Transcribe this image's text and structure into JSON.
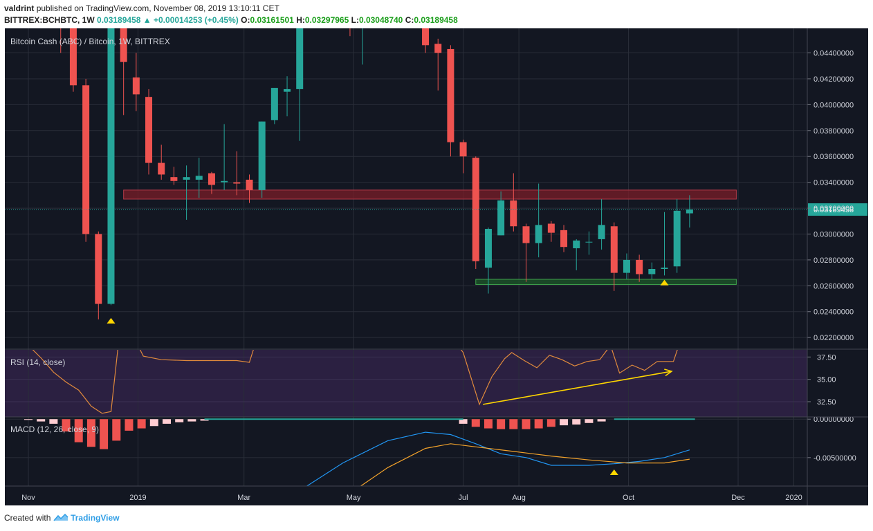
{
  "header": {
    "author": "valdrint",
    "published_text": "published on TradingView.com, November 08, 2019 13:10:11 CET",
    "symbol": "BITTREX:BCHBTC, 1W",
    "last": "0.03189458",
    "change_arrow": "▲",
    "change": "+0.00014253 (+0.45%)",
    "o_label": "O:",
    "o": "0.03161501",
    "h_label": "H:",
    "h": "0.03297965",
    "l_label": "L:",
    "l": "0.03048740",
    "c_label": "C:",
    "c": "0.03189458"
  },
  "footer": {
    "created_with": "Created with",
    "brand": "TradingView"
  },
  "colors": {
    "bg": "#131722",
    "up": "#26a69a",
    "down": "#ef5350",
    "grid": "#2a2e39",
    "rsi_line": "#e08a3c",
    "macd_line": "#2196f3",
    "signal_line": "#f4a32b",
    "hist_neg": "#ffcdd2",
    "hist_neg_strong": "#ef5350",
    "hist_pos": "#26a69a",
    "marker": "#ffd600",
    "resistance_zone": "#7b1d28",
    "support_zone": "#1e5a2a"
  },
  "chart_data": [
    {
      "type": "candlestick",
      "title": "Bitcoin Cash (ABC) / Bitcoin, 1W, BITTREX",
      "price_label": "0.03189458",
      "ylim": [
        0.0211,
        0.0459
      ],
      "y_ticks": [
        "0.02200000",
        "0.02400000",
        "0.02600000",
        "0.02800000",
        "0.03000000",
        "0.03200000",
        "0.03400000",
        "0.03600000",
        "0.03800000",
        "0.04000000",
        "0.04200000",
        "0.04400000"
      ],
      "x_ticks": [
        {
          "label": "Nov",
          "date": "2018-11-01"
        },
        {
          "label": "2019",
          "date": "2019-01-01"
        },
        {
          "label": "Mar",
          "date": "2019-03-01"
        },
        {
          "label": "May",
          "date": "2019-05-01"
        },
        {
          "label": "Jul",
          "date": "2019-07-01"
        },
        {
          "label": "Aug",
          "date": "2019-08-01"
        },
        {
          "label": "Oct",
          "date": "2019-10-01"
        },
        {
          "label": "Dec",
          "date": "2019-12-01"
        },
        {
          "label": "2020",
          "date": "2020-01-01"
        }
      ],
      "candles": [
        {
          "date": "2018-11-19",
          "o": 0.0475,
          "h": 0.0485,
          "l": 0.044,
          "c": 0.047
        },
        {
          "date": "2018-11-26",
          "o": 0.047,
          "h": 0.0475,
          "l": 0.041,
          "c": 0.0415
        },
        {
          "date": "2018-12-03",
          "o": 0.0415,
          "h": 0.042,
          "l": 0.0294,
          "c": 0.03
        },
        {
          "date": "2018-12-10",
          "o": 0.03,
          "h": 0.0302,
          "l": 0.0234,
          "c": 0.0246
        },
        {
          "date": "2018-12-17",
          "o": 0.0246,
          "h": 0.0475,
          "l": 0.0245,
          "c": 0.047
        },
        {
          "date": "2018-12-24",
          "o": 0.047,
          "h": 0.0475,
          "l": 0.0392,
          "c": 0.0433
        },
        {
          "date": "2018-12-31",
          "o": 0.0421,
          "h": 0.044,
          "l": 0.0395,
          "c": 0.0408
        },
        {
          "date": "2019-01-07",
          "o": 0.0406,
          "h": 0.0412,
          "l": 0.0346,
          "c": 0.0355
        },
        {
          "date": "2019-01-14",
          "o": 0.0355,
          "h": 0.0369,
          "l": 0.0342,
          "c": 0.0346
        },
        {
          "date": "2019-01-21",
          "o": 0.0344,
          "h": 0.0352,
          "l": 0.0338,
          "c": 0.0341
        },
        {
          "date": "2019-01-28",
          "o": 0.0342,
          "h": 0.0353,
          "l": 0.0311,
          "c": 0.0344
        },
        {
          "date": "2019-02-04",
          "o": 0.0342,
          "h": 0.0359,
          "l": 0.0328,
          "c": 0.0345
        },
        {
          "date": "2019-02-11",
          "o": 0.0347,
          "h": 0.0348,
          "l": 0.0331,
          "c": 0.0338
        },
        {
          "date": "2019-02-18",
          "o": 0.034,
          "h": 0.0385,
          "l": 0.0334,
          "c": 0.0341
        },
        {
          "date": "2019-02-25",
          "o": 0.034,
          "h": 0.0364,
          "l": 0.033,
          "c": 0.0339
        },
        {
          "date": "2019-03-04",
          "o": 0.0342,
          "h": 0.0346,
          "l": 0.0324,
          "c": 0.0334
        },
        {
          "date": "2019-03-11",
          "o": 0.0334,
          "h": 0.0387,
          "l": 0.0328,
          "c": 0.0387
        },
        {
          "date": "2019-03-18",
          "o": 0.0388,
          "h": 0.0413,
          "l": 0.0385,
          "c": 0.0413
        },
        {
          "date": "2019-03-25",
          "o": 0.041,
          "h": 0.0422,
          "l": 0.0391,
          "c": 0.0412
        },
        {
          "date": "2019-04-01",
          "o": 0.0412,
          "h": 0.0478,
          "l": 0.0372,
          "c": 0.047
        },
        {
          "date": "2019-04-29",
          "o": 0.047,
          "h": 0.0475,
          "l": 0.0453,
          "c": 0.0468
        },
        {
          "date": "2019-05-06",
          "o": 0.046,
          "h": 0.0475,
          "l": 0.0431,
          "c": 0.047
        },
        {
          "date": "2019-06-10",
          "o": 0.047,
          "h": 0.0475,
          "l": 0.044,
          "c": 0.0446
        },
        {
          "date": "2019-06-17",
          "o": 0.0447,
          "h": 0.0451,
          "l": 0.0411,
          "c": 0.044
        },
        {
          "date": "2019-06-24",
          "o": 0.0443,
          "h": 0.0446,
          "l": 0.036,
          "c": 0.0371
        },
        {
          "date": "2019-07-01",
          "o": 0.0371,
          "h": 0.0373,
          "l": 0.0347,
          "c": 0.036
        },
        {
          "date": "2019-07-08",
          "o": 0.0359,
          "h": 0.036,
          "l": 0.0273,
          "c": 0.0279
        },
        {
          "date": "2019-07-15",
          "o": 0.0274,
          "h": 0.0305,
          "l": 0.0254,
          "c": 0.0304
        },
        {
          "date": "2019-07-22",
          "o": 0.0299,
          "h": 0.0333,
          "l": 0.0299,
          "c": 0.0326
        },
        {
          "date": "2019-07-29",
          "o": 0.0326,
          "h": 0.0347,
          "l": 0.0302,
          "c": 0.0306
        },
        {
          "date": "2019-08-05",
          "o": 0.0306,
          "h": 0.0308,
          "l": 0.0263,
          "c": 0.0293
        },
        {
          "date": "2019-08-12",
          "o": 0.0293,
          "h": 0.0339,
          "l": 0.0282,
          "c": 0.0307
        },
        {
          "date": "2019-08-19",
          "o": 0.0308,
          "h": 0.031,
          "l": 0.0294,
          "c": 0.0301
        },
        {
          "date": "2019-08-26",
          "o": 0.0303,
          "h": 0.0307,
          "l": 0.0286,
          "c": 0.029
        },
        {
          "date": "2019-09-02",
          "o": 0.0289,
          "h": 0.0296,
          "l": 0.0272,
          "c": 0.0295
        },
        {
          "date": "2019-09-09",
          "o": 0.0294,
          "h": 0.0302,
          "l": 0.0284,
          "c": 0.0294
        },
        {
          "date": "2019-09-16",
          "o": 0.0296,
          "h": 0.0327,
          "l": 0.0288,
          "c": 0.0307
        },
        {
          "date": "2019-09-23",
          "o": 0.0306,
          "h": 0.0309,
          "l": 0.0256,
          "c": 0.027
        },
        {
          "date": "2019-09-30",
          "o": 0.027,
          "h": 0.0285,
          "l": 0.0265,
          "c": 0.028
        },
        {
          "date": "2019-10-07",
          "o": 0.028,
          "h": 0.0284,
          "l": 0.0263,
          "c": 0.0269
        },
        {
          "date": "2019-10-14",
          "o": 0.0269,
          "h": 0.0278,
          "l": 0.0265,
          "c": 0.0273
        },
        {
          "date": "2019-10-21",
          "o": 0.0273,
          "h": 0.0317,
          "l": 0.0268,
          "c": 0.0274
        },
        {
          "date": "2019-10-28",
          "o": 0.0275,
          "h": 0.0327,
          "l": 0.027,
          "c": 0.0318
        },
        {
          "date": "2019-11-04",
          "o": 0.0316,
          "h": 0.033,
          "l": 0.0305,
          "c": 0.0319
        }
      ],
      "zones": [
        {
          "kind": "resistance",
          "from": "2018-12-24",
          "to": "2019-11-30",
          "y1": 0.0327,
          "y2": 0.0334
        },
        {
          "kind": "support",
          "from": "2019-07-08",
          "to": "2019-11-30",
          "y1": 0.0261,
          "y2": 0.0265
        }
      ],
      "markers": [
        {
          "date": "2018-12-17",
          "price": 0.0233
        },
        {
          "date": "2019-10-21",
          "price": 0.02625
        }
      ]
    },
    {
      "type": "line",
      "title": "RSI (14, close)",
      "ylim": [
        30.8,
        38.3
      ],
      "y_ticks": [
        "37.50",
        "35.00",
        "32.50"
      ],
      "values": [
        {
          "date": "2018-11-01",
          "v": 38.8
        },
        {
          "date": "2018-11-08",
          "v": 37.4
        },
        {
          "date": "2018-11-15",
          "v": 35.8
        },
        {
          "date": "2018-11-22",
          "v": 34.7
        },
        {
          "date": "2018-11-29",
          "v": 33.8
        },
        {
          "date": "2018-12-06",
          "v": 32.0
        },
        {
          "date": "2018-12-12",
          "v": 31.2
        },
        {
          "date": "2018-12-17",
          "v": 31.4
        },
        {
          "date": "2018-12-21",
          "v": 38.8
        },
        {
          "date": "2019-01-01",
          "v": 38.8
        },
        {
          "date": "2019-01-04",
          "v": 37.6
        },
        {
          "date": "2019-01-14",
          "v": 37.2
        },
        {
          "date": "2019-01-28",
          "v": 37.1
        },
        {
          "date": "2019-02-11",
          "v": 37.1
        },
        {
          "date": "2019-02-25",
          "v": 37.1
        },
        {
          "date": "2019-03-04",
          "v": 36.9
        },
        {
          "date": "2019-03-07",
          "v": 38.8
        },
        {
          "date": "2019-06-28",
          "v": 38.8
        },
        {
          "date": "2019-07-01",
          "v": 38.0
        },
        {
          "date": "2019-07-10",
          "v": 32.2
        },
        {
          "date": "2019-07-17",
          "v": 35.3
        },
        {
          "date": "2019-07-24",
          "v": 37.3
        },
        {
          "date": "2019-07-28",
          "v": 38.0
        },
        {
          "date": "2019-08-04",
          "v": 37.1
        },
        {
          "date": "2019-08-11",
          "v": 36.3
        },
        {
          "date": "2019-08-18",
          "v": 37.7
        },
        {
          "date": "2019-08-25",
          "v": 37.2
        },
        {
          "date": "2019-09-01",
          "v": 36.5
        },
        {
          "date": "2019-09-08",
          "v": 37.0
        },
        {
          "date": "2019-09-15",
          "v": 37.2
        },
        {
          "date": "2019-09-21",
          "v": 38.8
        },
        {
          "date": "2019-09-26",
          "v": 35.7
        },
        {
          "date": "2019-10-03",
          "v": 36.6
        },
        {
          "date": "2019-10-10",
          "v": 36.0
        },
        {
          "date": "2019-10-17",
          "v": 37.0
        },
        {
          "date": "2019-10-26",
          "v": 37.0
        },
        {
          "date": "2019-10-29",
          "v": 38.8
        }
      ],
      "trendline": [
        {
          "date": "2019-07-12",
          "v": 32.2
        },
        {
          "date": "2019-10-25",
          "v": 35.9
        }
      ]
    },
    {
      "type": "line",
      "title": "MACD (12, 26, close, 9)",
      "ylim": [
        -0.0087,
        0.0002
      ],
      "y_ticks": [
        "0.00000000",
        "-0.00500000"
      ],
      "macd": [
        {
          "date": "2019-04-05",
          "v": -0.0087
        },
        {
          "date": "2019-04-25",
          "v": -0.0057
        },
        {
          "date": "2019-05-20",
          "v": -0.0028
        },
        {
          "date": "2019-06-10",
          "v": -0.0017
        },
        {
          "date": "2019-06-24",
          "v": -0.002
        },
        {
          "date": "2019-07-08",
          "v": -0.0032
        },
        {
          "date": "2019-07-22",
          "v": -0.0045
        },
        {
          "date": "2019-08-05",
          "v": -0.005
        },
        {
          "date": "2019-08-19",
          "v": -0.006
        },
        {
          "date": "2019-09-09",
          "v": -0.006
        },
        {
          "date": "2019-09-23",
          "v": -0.0058
        },
        {
          "date": "2019-10-07",
          "v": -0.0055
        },
        {
          "date": "2019-10-21",
          "v": -0.005
        },
        {
          "date": "2019-11-04",
          "v": -0.004
        }
      ],
      "signal": [
        {
          "date": "2019-05-05",
          "v": -0.0087
        },
        {
          "date": "2019-05-20",
          "v": -0.0063
        },
        {
          "date": "2019-06-10",
          "v": -0.0038
        },
        {
          "date": "2019-06-24",
          "v": -0.0032
        },
        {
          "date": "2019-07-08",
          "v": -0.0036
        },
        {
          "date": "2019-07-29",
          "v": -0.0042
        },
        {
          "date": "2019-08-19",
          "v": -0.0048
        },
        {
          "date": "2019-09-09",
          "v": -0.0053
        },
        {
          "date": "2019-09-30",
          "v": -0.0057
        },
        {
          "date": "2019-10-21",
          "v": -0.0057
        },
        {
          "date": "2019-11-04",
          "v": -0.0052
        }
      ],
      "histogram": [
        {
          "date": "2018-11-01",
          "v": -0.0001
        },
        {
          "date": "2018-11-08",
          "v": -0.0003
        },
        {
          "date": "2018-11-15",
          "v": -0.0006
        },
        {
          "date": "2018-11-22",
          "v": -0.0016
        },
        {
          "date": "2018-11-29",
          "v": -0.003
        },
        {
          "date": "2018-12-06",
          "v": -0.0036
        },
        {
          "date": "2018-12-13",
          "v": -0.0039
        },
        {
          "date": "2018-12-20",
          "v": -0.0028
        },
        {
          "date": "2018-12-27",
          "v": -0.0015
        },
        {
          "date": "2019-01-03",
          "v": -0.0012
        },
        {
          "date": "2019-01-10",
          "v": -0.0009
        },
        {
          "date": "2019-01-17",
          "v": -0.0006
        },
        {
          "date": "2019-01-24",
          "v": -0.0004
        },
        {
          "date": "2019-01-31",
          "v": -0.0003
        },
        {
          "date": "2019-02-07",
          "v": -0.0002
        },
        {
          "date": "2019-07-01",
          "v": -0.0006
        },
        {
          "date": "2019-07-08",
          "v": -0.001
        },
        {
          "date": "2019-07-15",
          "v": -0.0012
        },
        {
          "date": "2019-07-22",
          "v": -0.0013
        },
        {
          "date": "2019-07-29",
          "v": -0.0013
        },
        {
          "date": "2019-08-05",
          "v": -0.0013
        },
        {
          "date": "2019-08-12",
          "v": -0.0012
        },
        {
          "date": "2019-08-19",
          "v": -0.001
        },
        {
          "date": "2019-08-26",
          "v": -0.0008
        },
        {
          "date": "2019-09-02",
          "v": -0.0007
        },
        {
          "date": "2019-09-09",
          "v": -0.0005
        },
        {
          "date": "2019-09-16",
          "v": -0.0003
        }
      ],
      "marker": {
        "date": "2019-09-23",
        "v": -0.0069
      }
    }
  ]
}
